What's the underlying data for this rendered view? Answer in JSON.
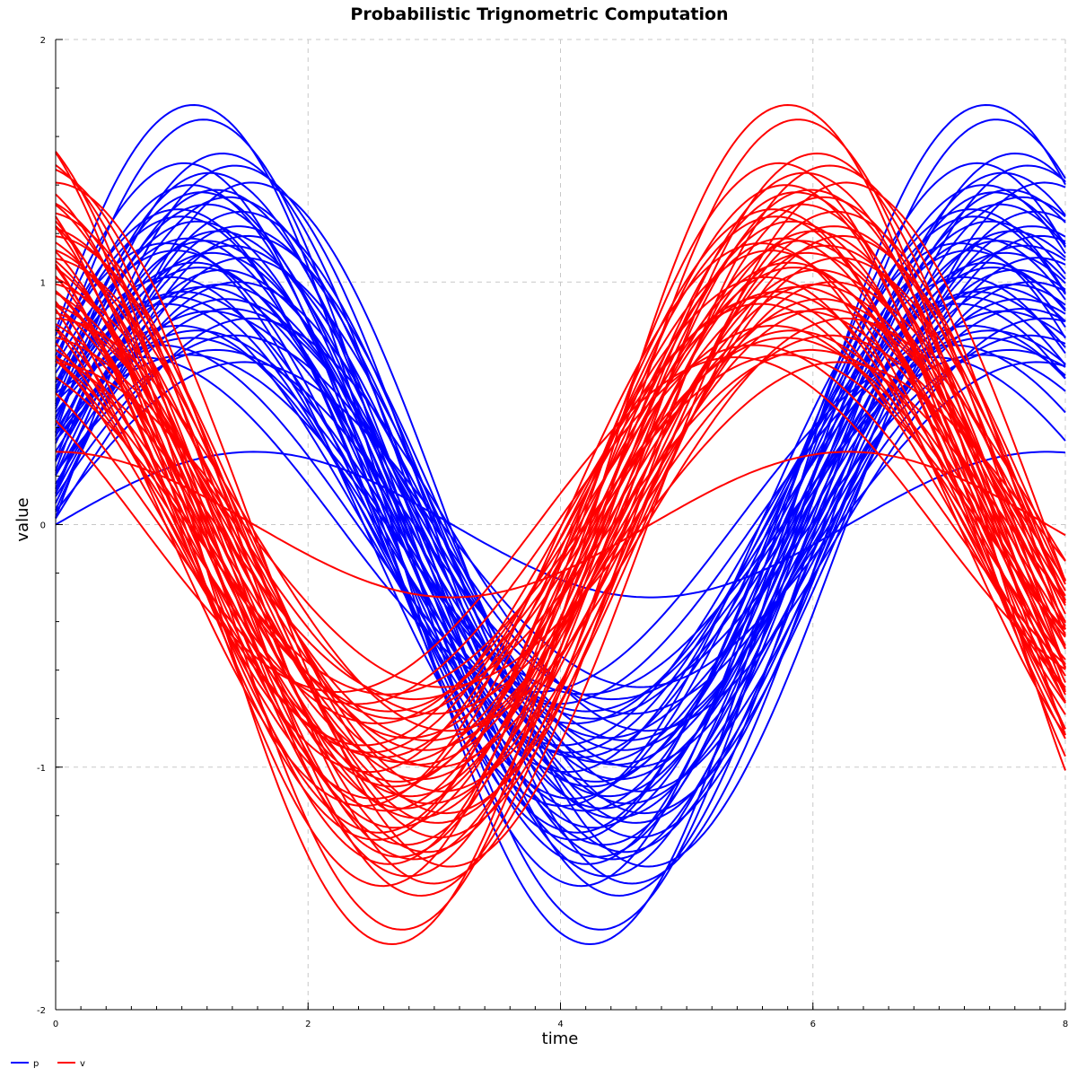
{
  "chart_data": {
    "type": "line",
    "title": "Probabilistic Trignometric Computation",
    "xlabel": "time",
    "ylabel": "value",
    "xlim": [
      0,
      8
    ],
    "ylim": [
      -2,
      2
    ],
    "x_ticks": [
      0,
      2,
      4,
      6,
      8
    ],
    "x_tick_labels": [
      "0",
      "2",
      "4",
      "6",
      "8"
    ],
    "y_ticks": [
      -2,
      -1,
      0,
      1,
      2
    ],
    "y_tick_labels": [
      "-2",
      "-1",
      "0",
      "1",
      "2"
    ],
    "grid": true,
    "legend_position": "bottom-left",
    "series": [
      {
        "name": "p",
        "color": "#0000ff",
        "formula": "A*sin(t+phi)",
        "trajectory_count": 50,
        "amplitudes": [
          1.73,
          1.67,
          1.53,
          1.49,
          1.48,
          1.45,
          1.41,
          1.4,
          1.38,
          1.37,
          1.35,
          1.3,
          1.29,
          1.25,
          1.21,
          1.19,
          1.18,
          1.17,
          1.15,
          1.13,
          1.12,
          1.1,
          1.08,
          1.05,
          1.02,
          1.0,
          0.98,
          0.96,
          0.93,
          0.91,
          0.88,
          0.85,
          0.82,
          0.8,
          0.78,
          0.74,
          0.72,
          0.7,
          0.67,
          1.32,
          1.27,
          1.23,
          1.06,
          0.99,
          0.94,
          0.89,
          0.77,
          0.69,
          1.16,
          0.3
        ],
        "phases": [
          0.48,
          0.4,
          0.25,
          0.55,
          0.15,
          0.35,
          0.02,
          0.5,
          0.3,
          0.42,
          0.2,
          0.6,
          0.1,
          0.45,
          0.28,
          0.05,
          0.52,
          0.38,
          0.18,
          0.62,
          0.33,
          0.08,
          0.47,
          0.25,
          0.66,
          0.13,
          0.4,
          0.56,
          0.22,
          0.7,
          0.35,
          0.03,
          0.6,
          0.45,
          0.15,
          0.75,
          0.3,
          0.52,
          0.08,
          0.37,
          0.58,
          0.12,
          0.43,
          0.27,
          0.65,
          0.19,
          0.5,
          0.9,
          0.7,
          0.0
        ]
      },
      {
        "name": "v",
        "color": "#ff0000",
        "formula": "A*cos(t+phi)",
        "trajectory_count": 50,
        "amplitudes": [
          1.73,
          1.67,
          1.53,
          1.49,
          1.48,
          1.45,
          1.41,
          1.4,
          1.38,
          1.37,
          1.35,
          1.3,
          1.29,
          1.25,
          1.21,
          1.19,
          1.18,
          1.17,
          1.15,
          1.13,
          1.12,
          1.1,
          1.08,
          1.05,
          1.02,
          1.0,
          0.98,
          0.96,
          0.93,
          0.91,
          0.88,
          0.85,
          0.82,
          0.8,
          0.78,
          0.74,
          0.72,
          0.7,
          0.67,
          1.32,
          1.27,
          1.23,
          1.06,
          0.99,
          0.94,
          0.89,
          0.77,
          0.69,
          1.16,
          0.3
        ],
        "phases": [
          0.48,
          0.4,
          0.25,
          0.55,
          0.15,
          0.35,
          0.02,
          0.5,
          0.3,
          0.42,
          0.2,
          0.6,
          0.1,
          0.45,
          0.28,
          0.05,
          0.52,
          0.38,
          0.18,
          0.62,
          0.33,
          0.08,
          0.47,
          0.25,
          0.66,
          0.13,
          0.4,
          0.56,
          0.22,
          0.7,
          0.35,
          0.03,
          0.6,
          0.45,
          0.15,
          0.75,
          0.3,
          0.52,
          0.08,
          0.37,
          0.58,
          0.12,
          0.43,
          0.27,
          0.65,
          0.19,
          0.5,
          0.9,
          0.7,
          0.0
        ]
      }
    ]
  }
}
